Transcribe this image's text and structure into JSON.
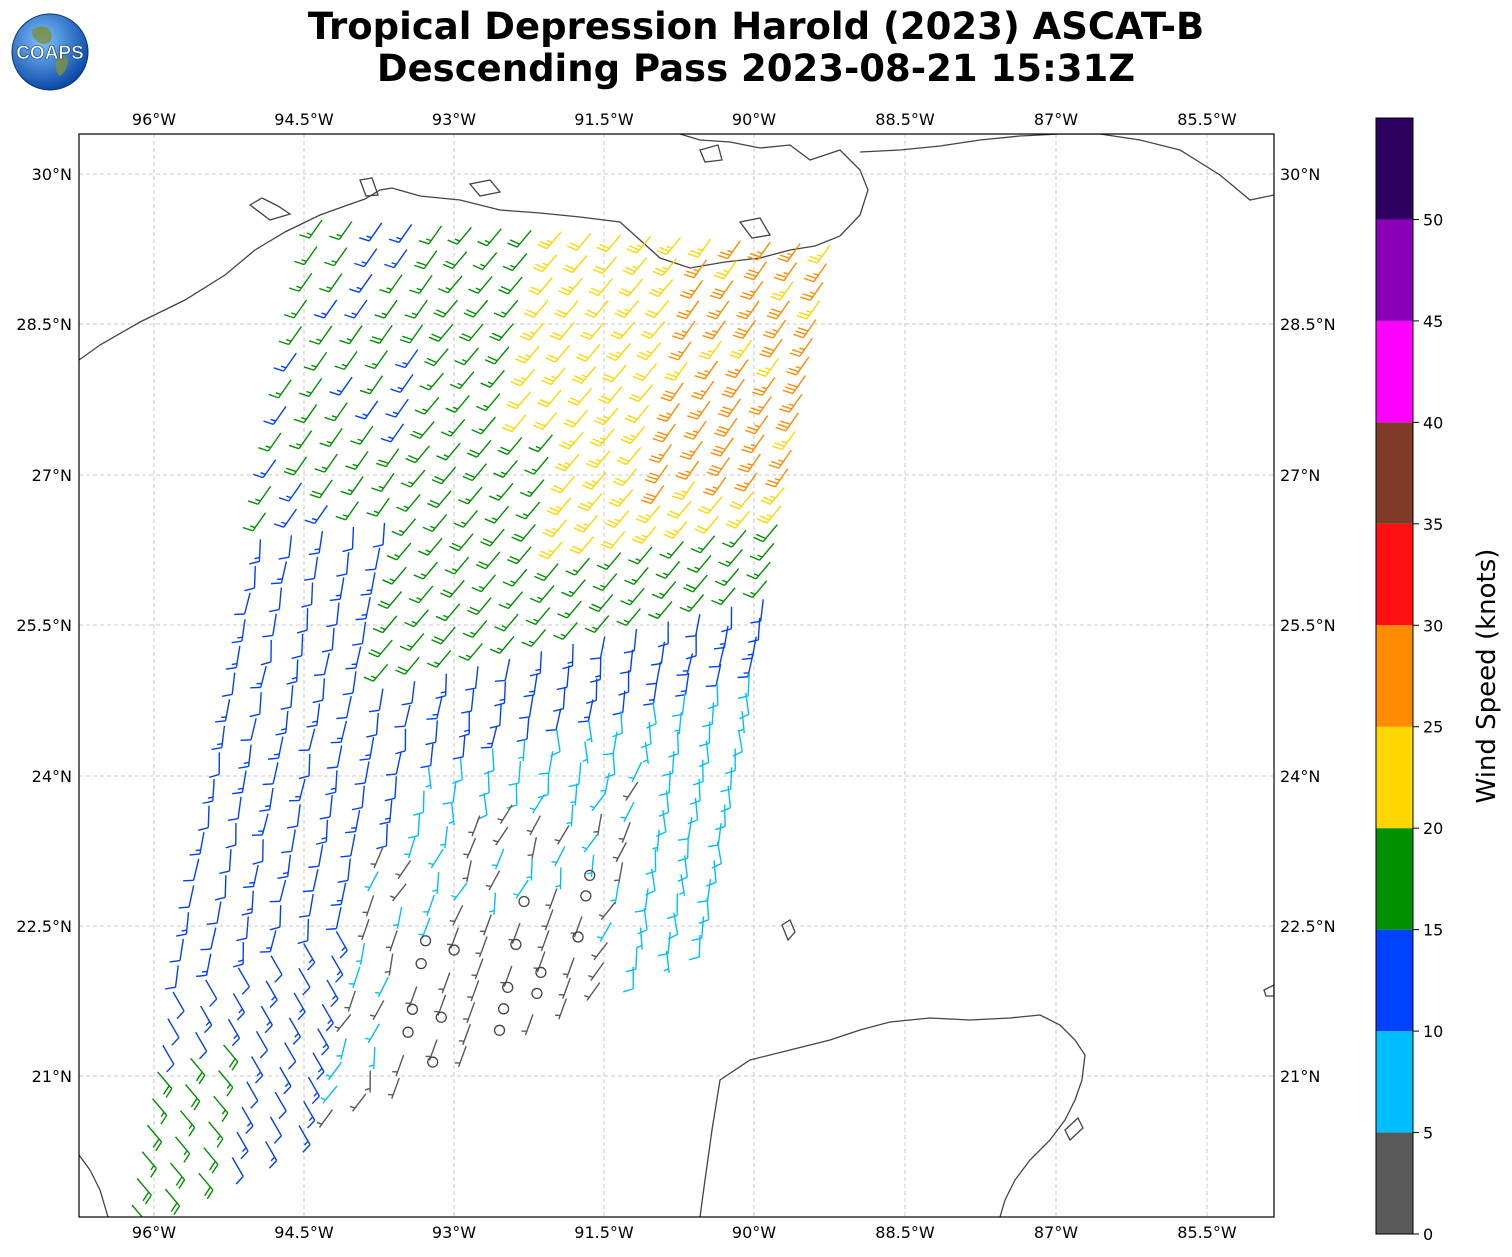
{
  "header": {
    "title_line1": "Tropical Depression Harold (2023) ASCAT-B",
    "title_line2": "Descending Pass 2023-08-21 15:31Z",
    "logo_text": "COAPS"
  },
  "map": {
    "lon_ticks": [
      "96°W",
      "94.5°W",
      "93°W",
      "91.5°W",
      "90°W",
      "88.5°W",
      "87°W",
      "85.5°W"
    ],
    "lat_ticks": [
      "30°N",
      "28.5°N",
      "27°N",
      "25.5°N",
      "24°N",
      "22.5°N",
      "21°N"
    ],
    "lon_range": [
      -96.75,
      -84.8
    ],
    "lat_range": [
      19.6,
      30.4
    ],
    "grid": true
  },
  "colorbar": {
    "label": "Wind Speed (knots)",
    "ticks": [
      "0",
      "5",
      "10",
      "15",
      "20",
      "25",
      "30",
      "35",
      "40",
      "45",
      "50"
    ],
    "bins": [
      {
        "min": 0,
        "max": 5,
        "color": "#595959"
      },
      {
        "min": 5,
        "max": 10,
        "color": "#00bfff"
      },
      {
        "min": 10,
        "max": 15,
        "color": "#0040ff"
      },
      {
        "min": 15,
        "max": 20,
        "color": "#009000"
      },
      {
        "min": 20,
        "max": 25,
        "color": "#ffd700"
      },
      {
        "min": 25,
        "max": 30,
        "color": "#ff8c00"
      },
      {
        "min": 30,
        "max": 35,
        "color": "#ff1010"
      },
      {
        "min": 35,
        "max": 40,
        "color": "#7f3a28"
      },
      {
        "min": 40,
        "max": 45,
        "color": "#ff00ff"
      },
      {
        "min": 45,
        "max": 50,
        "color": "#8a00b8"
      },
      {
        "min": 50,
        "max": 55,
        "color": "#2d005f"
      }
    ]
  },
  "chart_data": {
    "type": "wind-barb-map",
    "units": "knots",
    "swath_regions": [
      {
        "region": "north-east Gulf near Louisiana coast (28.5-29.5°N, 92-89°W)",
        "speed_kt": 22,
        "direction": "SW"
      },
      {
        "region": "east of swath (26.5-28°N, 90.5-89°W)",
        "speed_kt": 27,
        "direction": "SW"
      },
      {
        "region": "central-north (26-28.5°N, 94-91°W)",
        "speed_kt": 17,
        "direction": "SW"
      },
      {
        "region": "western swath (23-27°N, 95.5-93.5°W)",
        "speed_kt": 12,
        "direction": "S"
      },
      {
        "region": "south-central (21-23°N, 93-91°W)",
        "speed_kt": 7,
        "direction": "S"
      },
      {
        "region": "south-central calm (20-21°N, 92.5-91.5°W)",
        "speed_kt": 2,
        "direction": "calm"
      },
      {
        "region": "south-western swath (20-21°N, 96-95°W)",
        "speed_kt": 17,
        "direction": "SE"
      }
    ]
  }
}
